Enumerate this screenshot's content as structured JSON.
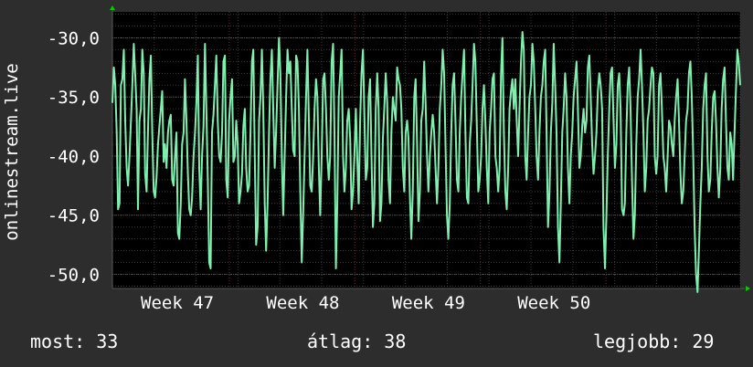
{
  "chart_data": {
    "type": "line",
    "ylabel": "onlinestream.live",
    "ylim": [
      -51.2,
      -27.8
    ],
    "yticks": [
      -30,
      -35,
      -40,
      -45,
      -50
    ],
    "ytick_labels": [
      "-30,0",
      "-35,0",
      "-40,0",
      "-45,0",
      "-50,0"
    ],
    "xlim": [
      0,
      435
    ],
    "xtick_labels": [
      {
        "label": "Week 47",
        "x": 45
      },
      {
        "label": "Week 48",
        "x": 132
      },
      {
        "label": "Week 49",
        "x": 219
      },
      {
        "label": "Week 50",
        "x": 306
      }
    ],
    "week_boundaries": [
      81,
      168,
      255,
      342
    ],
    "grid": true,
    "colors": {
      "line": "#7fefb0",
      "background": "#000000",
      "grid": "#3a3a3a",
      "week_line": "#6a2a2a",
      "axis_arrow": "#00cc00"
    },
    "series": [
      {
        "values": [
          -35.5,
          -32.5,
          -34,
          -38,
          -44.5,
          -44,
          -34,
          -33.5,
          -31,
          -37,
          -41,
          -42.5,
          -40,
          -37,
          -34,
          -30.5,
          -33,
          -36,
          -44.5,
          -37,
          -36,
          -31,
          -33,
          -41.5,
          -43,
          -38,
          -33.5,
          -31.5,
          -38,
          -43,
          -43.5,
          -41.8,
          -39,
          -37.5,
          -36,
          -34.5,
          -40.5,
          -39,
          -41,
          -38,
          -37,
          -36.5,
          -42,
          -42.5,
          -40,
          -38,
          -46.5,
          -47,
          -44,
          -39,
          -38,
          -33.5,
          -37,
          -41.5,
          -44.5,
          -45,
          -43.5,
          -40,
          -38,
          -35.5,
          -31.5,
          -41,
          -44.5,
          -40,
          -37.5,
          -30.5,
          -36,
          -42,
          -49,
          -49.5,
          -38,
          -36.5,
          -34,
          -31.5,
          -37,
          -40,
          -40.5,
          -38,
          -32,
          -31.5,
          -42,
          -43.5,
          -37,
          -35,
          -33.5,
          -40.5,
          -40,
          -37,
          -39,
          -44,
          -43,
          -41.5,
          -37.5,
          -36,
          -41,
          -43,
          -42.5,
          -38,
          -32,
          -31,
          -40,
          -47.5,
          -46,
          -37,
          -35,
          -31,
          -36,
          -44,
          -48,
          -44,
          -38,
          -33.5,
          -31,
          -36,
          -41,
          -38,
          -34,
          -30,
          -33,
          -40,
          -45,
          -40,
          -35,
          -31,
          -33,
          -32,
          -36,
          -39.5,
          -40,
          -31.5,
          -32,
          -36,
          -43,
          -49,
          -45,
          -40,
          -35,
          -31,
          -37,
          -42.5,
          -43,
          -40,
          -36,
          -33.5,
          -35,
          -41,
          -45,
          -40,
          -33.5,
          -33,
          -36,
          -40,
          -42,
          -40,
          -32,
          -30.5,
          -38,
          -49.5,
          -44,
          -35,
          -33,
          -31,
          -40,
          -43,
          -41,
          -37,
          -36,
          -38.5,
          -44.5,
          -43,
          -40,
          -36,
          -40,
          -44,
          -37,
          -33,
          -31,
          -36.5,
          -42,
          -41,
          -35,
          -33.5,
          -40,
          -46,
          -44,
          -36,
          -33,
          -36,
          -45.5,
          -44,
          -38.5,
          -36,
          -33,
          -35.5,
          -42,
          -44,
          -38,
          -35,
          -36,
          -37,
          -32.5,
          -33.5,
          -34,
          -36,
          -41,
          -43,
          -38,
          -37,
          -38.5,
          -43.5,
          -47,
          -43,
          -35,
          -33.5,
          -39,
          -45.5,
          -43,
          -37,
          -36,
          -32,
          -35.5,
          -40,
          -43,
          -40,
          -38,
          -36.5,
          -38,
          -41,
          -44,
          -41,
          -36,
          -34,
          -31,
          -33,
          -39,
          -45,
          -47,
          -44,
          -38,
          -34,
          -33,
          -37,
          -42,
          -43,
          -38,
          -35,
          -33,
          -31,
          -38,
          -43.5,
          -44,
          -39,
          -37,
          -34,
          -30.5,
          -32,
          -37.5,
          -43,
          -42,
          -40,
          -36,
          -34,
          -37,
          -41,
          -44,
          -38,
          -36,
          -33.5,
          -33,
          -40,
          -41,
          -43,
          -41,
          -33,
          -30,
          -38,
          -43,
          -44.5,
          -41,
          -36,
          -34.5,
          -33.5,
          -36,
          -33.5,
          -37,
          -40,
          -36,
          -32,
          -29.5,
          -31,
          -40,
          -42,
          -38,
          -35,
          -34,
          -30.5,
          -32,
          -36,
          -40,
          -42,
          -38,
          -35,
          -34,
          -32,
          -31,
          -38,
          -46,
          -43,
          -38,
          -35.5,
          -30.5,
          -34,
          -38,
          -46,
          -49,
          -44,
          -38,
          -36,
          -33,
          -35,
          -41,
          -44,
          -40,
          -38,
          -35,
          -33.5,
          -32,
          -36,
          -41,
          -40,
          -37.5,
          -36,
          -38,
          -37,
          -32.5,
          -31.5,
          -35,
          -39,
          -41.5,
          -40,
          -38,
          -34.5,
          -33,
          -34,
          -36,
          -46,
          -49.5,
          -45,
          -40,
          -36,
          -33,
          -32.5,
          -37,
          -41,
          -39,
          -34,
          -33,
          -36,
          -44.5,
          -45,
          -44,
          -38,
          -34,
          -32.5,
          -36,
          -42,
          -47,
          -45,
          -39,
          -35,
          -33.5,
          -31,
          -34,
          -38,
          -43,
          -41,
          -37,
          -36,
          -34,
          -32.5,
          -33,
          -40,
          -41.5,
          -40,
          -34,
          -33,
          -36,
          -40,
          -41,
          -43,
          -40,
          -37,
          -37.5,
          -39,
          -40,
          -37,
          -35,
          -33.5,
          -37,
          -41.5,
          -44,
          -43,
          -40,
          -37,
          -36,
          -33,
          -32,
          -35,
          -40,
          -46,
          -50,
          -51.5,
          -48,
          -44,
          -41,
          -36,
          -34,
          -33,
          -40,
          -43,
          -42,
          -38,
          -35,
          -34.5,
          -37,
          -41,
          -43.5,
          -41,
          -36,
          -33.5,
          -32.5,
          -37,
          -41,
          -42,
          -38,
          -39,
          -42,
          -38,
          -34.5,
          -31,
          -32,
          -34
        ]
      }
    ]
  },
  "stats": {
    "current_label": "most:",
    "current_value": "33",
    "average_label": "átlag:",
    "average_value": "38",
    "best_label": "legjobb:",
    "best_value": "29"
  }
}
